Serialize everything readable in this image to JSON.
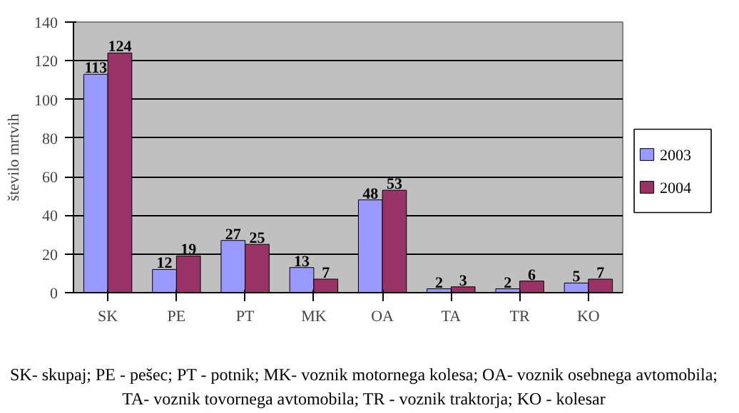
{
  "chart_data": {
    "type": "bar",
    "ylabel": "število mrtvih",
    "categories": [
      "SK",
      "PE",
      "PT",
      "MK",
      "OA",
      "TA",
      "TR",
      "KO"
    ],
    "series": [
      {
        "name": "2003",
        "color": "#9999ff",
        "values": [
          113,
          12,
          27,
          13,
          48,
          2,
          2,
          5
        ]
      },
      {
        "name": "2004",
        "color": "#993366",
        "values": [
          124,
          19,
          25,
          7,
          53,
          3,
          6,
          7
        ]
      }
    ],
    "ylim": [
      0,
      140
    ],
    "yticks": [
      0,
      20,
      40,
      60,
      80,
      100,
      120,
      140
    ],
    "grid": "y",
    "legend": "right",
    "data_labels": true,
    "annotations": [
      "SK- skupaj; PE - pešec; PT - potnik; MK- voznik motornega kolesa; OA- voznik osebnega avtomobila; TA- voznik tovornega avtomobila; TR - voznik traktorja; KO - kolesar"
    ]
  }
}
